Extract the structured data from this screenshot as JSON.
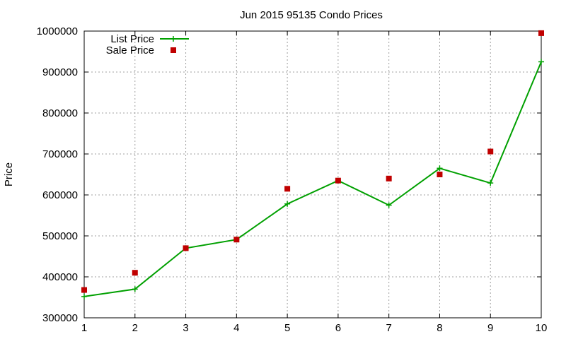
{
  "chart_data": {
    "type": "line",
    "title": "Jun 2015 95135 Condo Prices",
    "xlabel": "",
    "ylabel": "Price",
    "x": [
      1,
      2,
      3,
      4,
      5,
      6,
      7,
      8,
      9,
      10
    ],
    "xlim": [
      1,
      10
    ],
    "ylim": [
      300000,
      1000000
    ],
    "xticks": [
      "1",
      "2",
      "3",
      "4",
      "5",
      "6",
      "7",
      "8",
      "9",
      "10"
    ],
    "yticks": [
      "300000",
      "400000",
      "500000",
      "600000",
      "700000",
      "800000",
      "900000",
      "1000000"
    ],
    "grid": true,
    "legend_position": "top-left",
    "series": [
      {
        "name": "List Price",
        "style": "line-points",
        "color": "#00a000",
        "values": [
          352000,
          370000,
          470000,
          491000,
          578000,
          635000,
          575000,
          665000,
          629000,
          925000
        ]
      },
      {
        "name": "Sale Price",
        "style": "points",
        "color": "#c00000",
        "values": [
          368000,
          410000,
          470000,
          491000,
          615000,
          635000,
          640000,
          650000,
          706000,
          995000
        ]
      }
    ]
  }
}
